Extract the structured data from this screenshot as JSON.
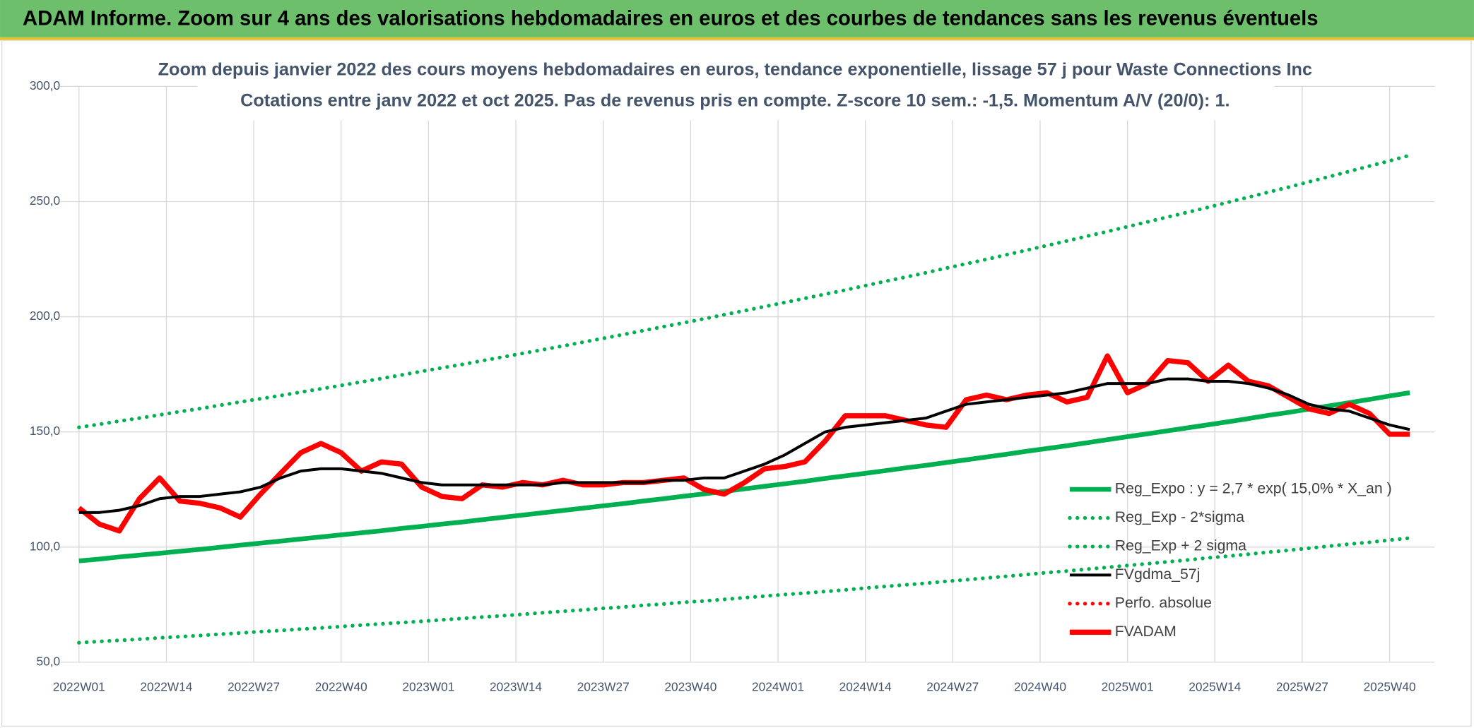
{
  "header": {
    "title": "ADAM Informe. Zoom sur 4 ans des valorisations hebdomadaires en euros et des courbes de tendances sans les revenus éventuels"
  },
  "chart_data": {
    "type": "line",
    "title": "Zoom depuis janvier 2022 des cours moyens hebdomadaires en euros, tendance exponentielle, lissage 57 j pour Waste Connections Inc",
    "subtitle": "Cotations entre janv 2022 et oct 2025. Pas de revenus pris en compte. Z-score 10 sem.: -1,5. Momentum A/V (20/0): 1.",
    "x": [
      0,
      3,
      6,
      9,
      12,
      15,
      18,
      21,
      24,
      27,
      30,
      33,
      36,
      39,
      42,
      45,
      48,
      51,
      54,
      57,
      60,
      63,
      66,
      69,
      72,
      75,
      78,
      81,
      84,
      87,
      90,
      93,
      96,
      99,
      102,
      105,
      108,
      111,
      114,
      117,
      120,
      123,
      126,
      129,
      132,
      135,
      138,
      141,
      144,
      147,
      150,
      153,
      156,
      159,
      162,
      165,
      168,
      171,
      174,
      177,
      180,
      183,
      186,
      189,
      192,
      195,
      198
    ],
    "xlim": [
      0,
      200
    ],
    "xticks": [
      {
        "value": 0,
        "label": "2022W01"
      },
      {
        "value": 13,
        "label": "2022W14"
      },
      {
        "value": 26,
        "label": "2022W27"
      },
      {
        "value": 39,
        "label": "2022W40"
      },
      {
        "value": 52,
        "label": "2023W01"
      },
      {
        "value": 65,
        "label": "2023W14"
      },
      {
        "value": 78,
        "label": "2023W27"
      },
      {
        "value": 91,
        "label": "2023W40"
      },
      {
        "value": 104,
        "label": "2024W01"
      },
      {
        "value": 117,
        "label": "2024W14"
      },
      {
        "value": 130,
        "label": "2024W27"
      },
      {
        "value": 143,
        "label": "2024W40"
      },
      {
        "value": 156,
        "label": "2025W01"
      },
      {
        "value": 169,
        "label": "2025W14"
      },
      {
        "value": 182,
        "label": "2025W27"
      },
      {
        "value": 195,
        "label": "2025W40"
      }
    ],
    "ylim": [
      50,
      300
    ],
    "yticks": [
      {
        "value": 50,
        "label": "50,0"
      },
      {
        "value": 100,
        "label": "100,0"
      },
      {
        "value": 150,
        "label": "150,0"
      },
      {
        "value": 200,
        "label": "200,0"
      },
      {
        "value": 250,
        "label": "250,0"
      },
      {
        "value": 300,
        "label": "300,0"
      }
    ],
    "grid": true,
    "legend": "bottom-right",
    "series": [
      {
        "name": "Reg_Expo : y = 2,7 * exp( 15,0% *  X_an )",
        "color": "#00b050",
        "line_style": "solid",
        "values": [
          94.0,
          94.8,
          95.7,
          96.5,
          97.3,
          98.2,
          99.0,
          99.9,
          100.8,
          101.7,
          102.6,
          103.5,
          104.4,
          105.3,
          106.2,
          107.1,
          108.1,
          109.0,
          110.0,
          110.9,
          111.9,
          112.9,
          113.9,
          114.9,
          115.9,
          116.9,
          117.9,
          118.9,
          120.0,
          121.0,
          122.1,
          123.1,
          124.2,
          125.3,
          126.4,
          127.5,
          128.6,
          129.8,
          130.9,
          132.0,
          133.2,
          134.4,
          135.5,
          136.7,
          137.9,
          139.1,
          140.3,
          141.6,
          142.8,
          144.0,
          145.3,
          146.6,
          147.9,
          149.2,
          150.5,
          151.8,
          153.1,
          154.4,
          155.8,
          157.2,
          158.5,
          159.9,
          161.3,
          162.7,
          164.1,
          165.6,
          167.0
        ]
      },
      {
        "name": "Reg_Exp - 2*sigma",
        "color": "#00b050",
        "line_style": "dotted",
        "values": [
          58.5,
          59.0,
          59.5,
          60.0,
          60.6,
          61.1,
          61.6,
          62.2,
          62.7,
          63.3,
          63.8,
          64.4,
          64.9,
          65.5,
          66.1,
          66.7,
          67.2,
          67.8,
          68.4,
          69.0,
          69.6,
          70.2,
          70.8,
          71.5,
          72.1,
          72.7,
          73.4,
          74.0,
          74.7,
          75.3,
          76.0,
          76.6,
          77.3,
          78.0,
          78.7,
          79.4,
          80.0,
          80.7,
          81.4,
          82.2,
          82.9,
          83.6,
          84.3,
          85.1,
          85.8,
          86.6,
          87.3,
          88.1,
          88.9,
          89.6,
          90.4,
          91.2,
          92.0,
          92.8,
          93.6,
          94.4,
          95.3,
          96.1,
          96.9,
          97.8,
          98.6,
          99.5,
          100.4,
          101.3,
          102.1,
          103.0,
          103.9
        ]
      },
      {
        "name": "Reg_Exp + 2 sigma",
        "color": "#00b050",
        "line_style": "dotted",
        "values": [
          152.0,
          153.3,
          154.7,
          156.0,
          157.4,
          158.8,
          160.1,
          161.6,
          163.0,
          164.4,
          165.8,
          167.3,
          168.7,
          170.2,
          171.7,
          173.2,
          174.7,
          176.3,
          177.8,
          179.3,
          180.9,
          182.5,
          184.1,
          185.7,
          187.3,
          189.0,
          190.6,
          192.3,
          194.0,
          195.7,
          197.4,
          199.1,
          200.9,
          202.6,
          204.4,
          206.2,
          208.0,
          209.8,
          211.6,
          213.5,
          215.4,
          217.2,
          219.1,
          221.1,
          223.0,
          224.9,
          226.9,
          228.9,
          230.9,
          232.9,
          235.0,
          237.0,
          239.1,
          241.2,
          243.3,
          245.4,
          247.5,
          249.7,
          251.9,
          254.1,
          256.3,
          258.6,
          260.8,
          263.1,
          265.4,
          267.7,
          270.1
        ]
      },
      {
        "name": "FVgdma_57j",
        "color": "#000000",
        "line_style": "solid",
        "values": [
          115,
          115,
          116,
          118,
          121,
          122,
          122,
          123,
          124,
          126,
          130,
          133,
          134,
          134,
          133,
          132,
          130,
          128,
          127,
          127,
          127,
          127,
          127,
          127,
          128,
          128,
          128,
          128,
          128,
          129,
          129,
          130,
          130,
          133,
          136,
          140,
          145,
          150,
          152,
          153,
          154,
          155,
          156,
          159,
          162,
          163,
          164,
          165,
          166,
          167,
          169,
          171,
          171,
          171,
          173,
          173,
          172,
          172,
          171,
          169,
          166,
          162,
          160,
          159,
          156,
          153,
          151
        ]
      },
      {
        "name": "Perfo. absolue",
        "color": "#ff0000",
        "line_style": "dotted",
        "values": [
          null,
          null,
          null,
          null,
          null,
          null,
          null,
          null,
          null,
          null,
          null,
          null,
          null,
          null,
          null,
          null,
          null,
          null,
          null,
          null,
          null,
          null,
          null,
          null,
          null,
          null,
          null,
          null,
          null,
          null,
          null,
          null,
          null,
          null,
          null,
          null,
          null,
          null,
          null,
          null,
          null,
          null,
          null,
          null,
          null,
          null,
          null,
          null,
          null,
          null,
          null,
          null,
          null,
          null,
          null,
          null,
          null,
          null,
          null,
          null,
          null,
          null,
          null,
          null,
          null,
          null,
          null
        ]
      },
      {
        "name": "FVADAM",
        "color": "#ff0000",
        "line_style": "solid",
        "values": [
          117,
          110,
          107,
          121,
          130,
          120,
          119,
          117,
          113,
          123,
          132,
          141,
          145,
          141,
          133,
          137,
          136,
          126,
          122,
          121,
          127,
          126,
          128,
          127,
          129,
          127,
          127,
          128,
          128,
          129,
          130,
          125,
          123,
          128,
          134,
          135,
          137,
          146,
          157,
          157,
          157,
          155,
          153,
          152,
          164,
          166,
          164,
          166,
          167,
          163,
          165,
          183,
          167,
          171,
          181,
          180,
          172,
          179,
          172,
          170,
          165,
          160,
          158,
          162,
          158,
          149,
          149
        ]
      }
    ]
  }
}
